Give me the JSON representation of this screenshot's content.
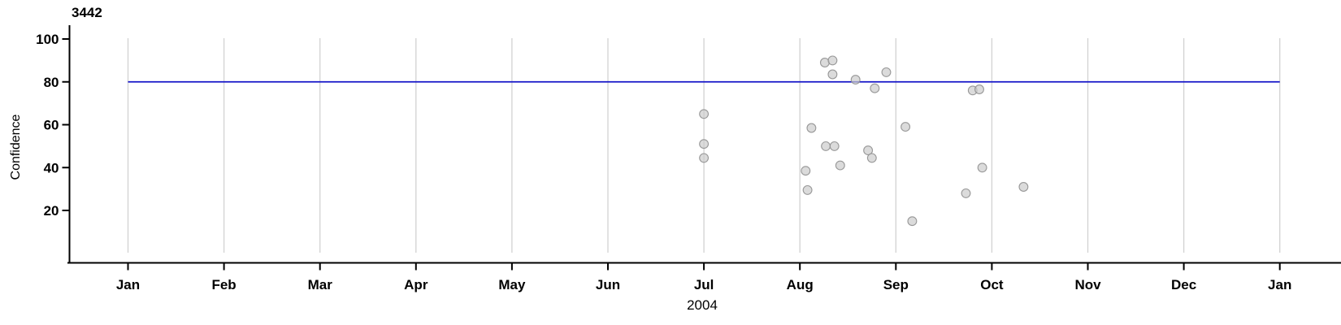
{
  "page": {
    "background": "#ffffff"
  },
  "chart": {
    "title": "3442",
    "ylabel": "Confidence",
    "xlabel": "2004"
  },
  "chart_data": {
    "type": "scatter",
    "title": "3442",
    "xlabel": "2004",
    "ylabel": "Confidence",
    "x_unit": "month_of_2004_fractional_jan0",
    "x_tick_labels": [
      "Jan",
      "Feb",
      "Mar",
      "Apr",
      "May",
      "Jun",
      "Jul",
      "Aug",
      "Sep",
      "Oct",
      "Nov",
      "Dec",
      "Jan"
    ],
    "y_ticks": [
      20,
      40,
      60,
      80,
      100
    ],
    "ylim": [
      0,
      100
    ],
    "grid": "vertical-monthly",
    "legend": "none",
    "reference_line": {
      "y": 80,
      "x_from_month": 0,
      "x_to_month": 12,
      "color": "#1414c8"
    },
    "points": [
      {
        "month": 6.0,
        "value": 65
      },
      {
        "month": 6.0,
        "value": 51
      },
      {
        "month": 6.0,
        "value": 44.5
      },
      {
        "month": 7.06,
        "value": 38.5
      },
      {
        "month": 7.08,
        "value": 29.5
      },
      {
        "month": 7.12,
        "value": 58.5
      },
      {
        "month": 7.26,
        "value": 89
      },
      {
        "month": 7.34,
        "value": 90
      },
      {
        "month": 7.34,
        "value": 83.5
      },
      {
        "month": 7.27,
        "value": 50
      },
      {
        "month": 7.36,
        "value": 50
      },
      {
        "month": 7.42,
        "value": 41
      },
      {
        "month": 7.58,
        "value": 81
      },
      {
        "month": 7.71,
        "value": 48
      },
      {
        "month": 7.75,
        "value": 44.5
      },
      {
        "month": 7.78,
        "value": 77
      },
      {
        "month": 7.9,
        "value": 84.5
      },
      {
        "month": 8.1,
        "value": 59
      },
      {
        "month": 8.17,
        "value": 15
      },
      {
        "month": 8.73,
        "value": 28
      },
      {
        "month": 8.8,
        "value": 76
      },
      {
        "month": 8.87,
        "value": 76.5
      },
      {
        "month": 8.9,
        "value": 40
      },
      {
        "month": 9.33,
        "value": 31
      }
    ],
    "colors": {
      "grid": "#d2d2d2",
      "axis": "#000000",
      "reference_line": "#1414c8",
      "point_fill": "#cccccc",
      "point_stroke": "#8f8f8f"
    }
  }
}
